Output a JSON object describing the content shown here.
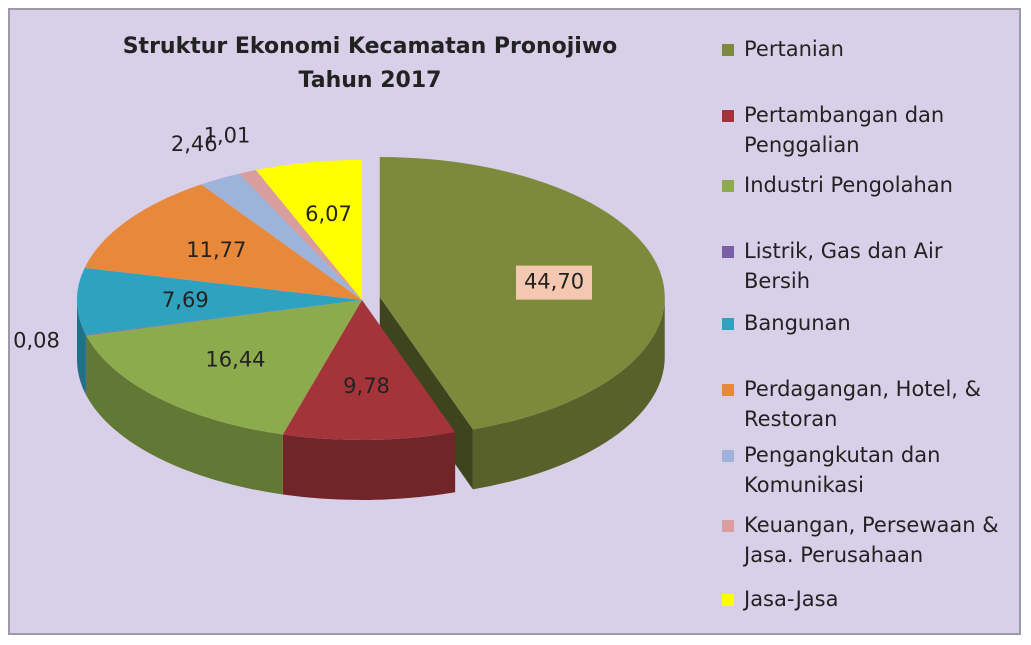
{
  "chart_data": {
    "type": "pie",
    "title": "Struktur Ekonomi Kecamatan Pronojiwo Tahun 2017",
    "categories": [
      "Pertanian",
      "Pertambangan dan Penggalian",
      "Industri Pengolahan",
      "Listrik, Gas dan Air Bersih",
      "Bangunan",
      "Perdagangan, Hotel, & Restoran",
      "Pengangkutan dan Komunikasi",
      "Keuangan, Persewaan & Jasa. Perusahaan",
      "Jasa-Jasa"
    ],
    "values": [
      44.7,
      9.78,
      16.44,
      0.08,
      7.69,
      11.77,
      2.46,
      1.01,
      6.07
    ],
    "value_labels": [
      "44,70",
      "9,78",
      "16,44",
      "0,08",
      "7,69",
      "11,77",
      "2,46",
      "1,01",
      "6,07"
    ],
    "colors": [
      "#7d8a3c",
      "#a3353a",
      "#8cab4c",
      "#7a5ea8",
      "#2fa2bf",
      "#e8883a",
      "#9db3d9",
      "#d89d9c",
      "#ffff00"
    ]
  }
}
